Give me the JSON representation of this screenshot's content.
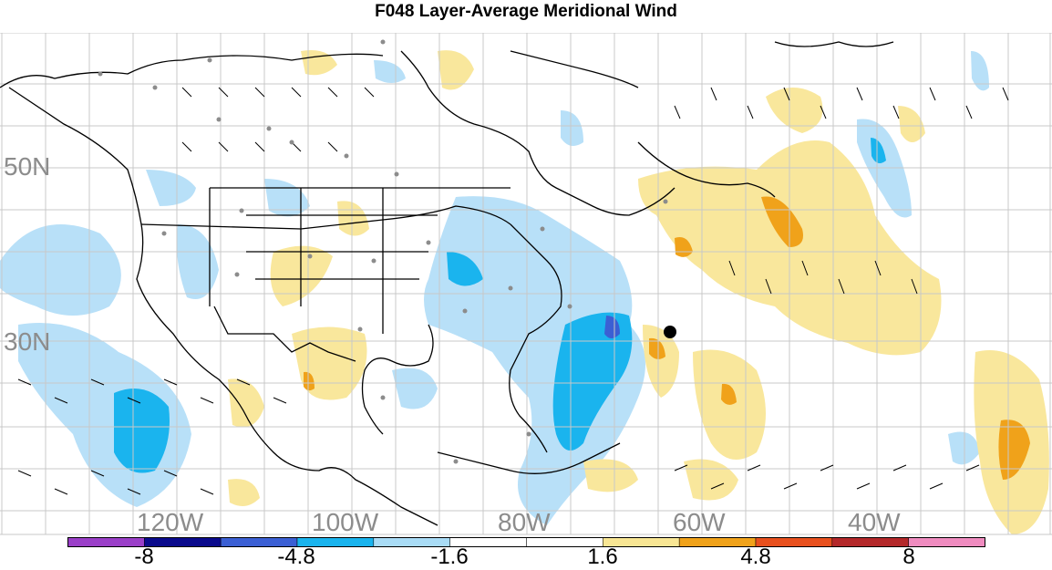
{
  "title": "F048 Layer-Average Meridional Wind",
  "lat_labels": [
    "50N",
    "30N"
  ],
  "lon_labels": [
    "120W",
    "100W",
    "80W",
    "60W",
    "40W"
  ],
  "colorbar": {
    "colors": [
      "#9a3fc8",
      "#0a0a8c",
      "#3b5fd4",
      "#1ab4ee",
      "#a9dcf6",
      "#ffffff",
      "#ffffff",
      "#f8e694",
      "#f0a21a",
      "#e8501e",
      "#b4282a",
      "#f08cc0"
    ],
    "labels": [
      "-8",
      "-4.8",
      "-1.6",
      "1.6",
      "4.8",
      "8"
    ]
  },
  "colors": {
    "neg_light": "#b8e0f8",
    "neg_mid": "#1ab4ee",
    "neg_dark": "#3b5fd4",
    "pos_light": "#f9e79c",
    "pos_mid": "#f0a21a",
    "coast": "#000000",
    "grid": "#c8c8c8",
    "station": "#8c8c8c"
  }
}
